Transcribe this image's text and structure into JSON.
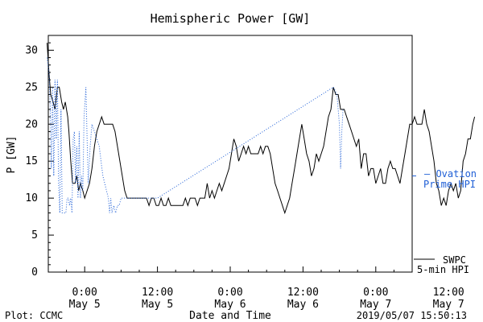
{
  "chart_data": {
    "type": "line",
    "title": "Hemispheric Power [GW]",
    "ylabel": "P [GW]",
    "xlabel": "Date and Time",
    "ylim": [
      0,
      32
    ],
    "yticks": [
      0,
      5,
      10,
      15,
      20,
      25,
      30
    ],
    "xlim_hours": [
      -6,
      54
    ],
    "x_units": "hours from 2019-05-05 00:00 UT",
    "xticks": [
      {
        "hour": 0,
        "time": "0:00",
        "date": "May 5"
      },
      {
        "hour": 12,
        "time": "12:00",
        "date": "May 5"
      },
      {
        "hour": 24,
        "time": "0:00",
        "date": "May 6"
      },
      {
        "hour": 36,
        "time": "12:00",
        "date": "May 6"
      },
      {
        "hour": 48,
        "time": "0:00",
        "date": "May 7"
      },
      {
        "hour": 60,
        "time": "12:00",
        "date": "May 7"
      }
    ],
    "series": [
      {
        "name": "SWPC",
        "style": "solid",
        "color": "#000000",
        "points": [
          [
            -6.2,
            31
          ],
          [
            -5.9,
            27
          ],
          [
            -5.6,
            24
          ],
          [
            -5.2,
            23
          ],
          [
            -4.9,
            22
          ],
          [
            -4.5,
            25
          ],
          [
            -4.2,
            25
          ],
          [
            -3.8,
            23
          ],
          [
            -3.5,
            22
          ],
          [
            -3.2,
            23
          ],
          [
            -2.8,
            21
          ],
          [
            -2.6,
            19
          ],
          [
            -2.3,
            15
          ],
          [
            -2,
            12
          ],
          [
            -1.6,
            12
          ],
          [
            -1.3,
            13
          ],
          [
            -1,
            11
          ],
          [
            -0.7,
            12
          ],
          [
            -0.3,
            11
          ],
          [
            0,
            10
          ],
          [
            0.4,
            11
          ],
          [
            0.8,
            12
          ],
          [
            1.2,
            14
          ],
          [
            1.6,
            17
          ],
          [
            2,
            19
          ],
          [
            2.4,
            20
          ],
          [
            2.8,
            21
          ],
          [
            3.2,
            20
          ],
          [
            3.6,
            20
          ],
          [
            4,
            20
          ],
          [
            4.6,
            20
          ],
          [
            5,
            19
          ],
          [
            5.4,
            17
          ],
          [
            5.8,
            15
          ],
          [
            6.2,
            13
          ],
          [
            6.6,
            11
          ],
          [
            7,
            10
          ],
          [
            7.4,
            10
          ],
          [
            8,
            10
          ],
          [
            8.6,
            10
          ],
          [
            9.2,
            10
          ],
          [
            9.8,
            10
          ],
          [
            10.2,
            10
          ],
          [
            10.6,
            9
          ],
          [
            11,
            10
          ],
          [
            11.4,
            10
          ],
          [
            11.8,
            9
          ],
          [
            12.2,
            9
          ],
          [
            12.6,
            10
          ],
          [
            13,
            9
          ],
          [
            13.4,
            9
          ],
          [
            13.8,
            10
          ],
          [
            14.2,
            9
          ],
          [
            14.6,
            9
          ],
          [
            15.4,
            9
          ],
          [
            16.2,
            9
          ],
          [
            16.6,
            10
          ],
          [
            17,
            9
          ],
          [
            17.4,
            10
          ],
          [
            17.8,
            10
          ],
          [
            18.2,
            10
          ],
          [
            18.6,
            9
          ],
          [
            19,
            10
          ],
          [
            19.4,
            10
          ],
          [
            19.8,
            10
          ],
          [
            20.2,
            12
          ],
          [
            20.6,
            10
          ],
          [
            21,
            11
          ],
          [
            21.4,
            10
          ],
          [
            21.8,
            11
          ],
          [
            22.2,
            12
          ],
          [
            22.6,
            11
          ],
          [
            23,
            12
          ],
          [
            23.4,
            13
          ],
          [
            23.8,
            14
          ],
          [
            24.2,
            16
          ],
          [
            24.6,
            18
          ],
          [
            25,
            17
          ],
          [
            25.4,
            15
          ],
          [
            25.8,
            16
          ],
          [
            26.2,
            17
          ],
          [
            26.6,
            16
          ],
          [
            27,
            17
          ],
          [
            27.4,
            16
          ],
          [
            27.8,
            16
          ],
          [
            28.2,
            16
          ],
          [
            28.6,
            16
          ],
          [
            29,
            17
          ],
          [
            29.4,
            16
          ],
          [
            29.8,
            17
          ],
          [
            30.2,
            17
          ],
          [
            30.6,
            16
          ],
          [
            31,
            14
          ],
          [
            31.4,
            12
          ],
          [
            31.8,
            11
          ],
          [
            32.2,
            10
          ],
          [
            32.6,
            9
          ],
          [
            33,
            8
          ],
          [
            33.4,
            9
          ],
          [
            33.8,
            10
          ],
          [
            34.2,
            12
          ],
          [
            34.6,
            14
          ],
          [
            35,
            16
          ],
          [
            35.4,
            18
          ],
          [
            35.8,
            20
          ],
          [
            36.2,
            18
          ],
          [
            36.6,
            16
          ],
          [
            37,
            15
          ],
          [
            37.4,
            13
          ],
          [
            37.8,
            14
          ],
          [
            38.2,
            16
          ],
          [
            38.6,
            15
          ],
          [
            39,
            16
          ],
          [
            39.4,
            17
          ],
          [
            39.8,
            19
          ],
          [
            40.2,
            21
          ],
          [
            40.6,
            22
          ],
          [
            41,
            25
          ],
          [
            41.4,
            24
          ],
          [
            41.8,
            24
          ],
          [
            42.2,
            22
          ],
          [
            42.8,
            22
          ],
          [
            43.2,
            21
          ],
          [
            43.6,
            20
          ],
          [
            44,
            19
          ],
          [
            44.4,
            18
          ],
          [
            44.8,
            17
          ],
          [
            45.2,
            18
          ],
          [
            45.6,
            14
          ],
          [
            46,
            16
          ],
          [
            46.4,
            16
          ],
          [
            46.8,
            13
          ],
          [
            47.2,
            14
          ],
          [
            47.6,
            14
          ],
          [
            48,
            12
          ],
          [
            48.4,
            13
          ],
          [
            48.8,
            14
          ],
          [
            49.2,
            12
          ],
          [
            49.6,
            12
          ],
          [
            50,
            14
          ],
          [
            50.4,
            15
          ],
          [
            50.8,
            14
          ],
          [
            51.2,
            14
          ],
          [
            51.6,
            13
          ],
          [
            52,
            12
          ],
          [
            52.4,
            14
          ],
          [
            52.8,
            16
          ],
          [
            53.2,
            18
          ],
          [
            53.6,
            20
          ],
          [
            54,
            20
          ],
          [
            54.4,
            21
          ],
          [
            54.8,
            20
          ],
          [
            55.2,
            20
          ],
          [
            55.6,
            20
          ],
          [
            56,
            22
          ],
          [
            56.4,
            20
          ],
          [
            56.8,
            19
          ],
          [
            57.2,
            17
          ],
          [
            57.6,
            15
          ],
          [
            58,
            12
          ],
          [
            58.4,
            11
          ],
          [
            58.8,
            9
          ],
          [
            59.2,
            10
          ],
          [
            59.6,
            9
          ],
          [
            60,
            11
          ],
          [
            60.4,
            12
          ],
          [
            60.8,
            11
          ],
          [
            61.2,
            12
          ],
          [
            61.6,
            10
          ],
          [
            62,
            11
          ],
          [
            62.4,
            15
          ],
          [
            62.8,
            16
          ],
          [
            63.2,
            18
          ],
          [
            63.6,
            18
          ],
          [
            64,
            20
          ],
          [
            64.3,
            21
          ]
        ]
      },
      {
        "name": "5-min HPI",
        "style": "dotted",
        "color": "#1f5fd6",
        "points": [
          [
            -6.2,
            29
          ],
          [
            -5.9,
            27
          ],
          [
            -5.7,
            23
          ],
          [
            -5.5,
            14
          ],
          [
            -5.3,
            25
          ],
          [
            -5.1,
            13
          ],
          [
            -4.9,
            26
          ],
          [
            -4.7,
            18
          ],
          [
            -4.5,
            26
          ],
          [
            -4.3,
            12
          ],
          [
            -4.1,
            8
          ],
          [
            -3.9,
            22
          ],
          [
            -3.7,
            8
          ],
          [
            -3.4,
            8
          ],
          [
            -3.1,
            8
          ],
          [
            -2.9,
            10
          ],
          [
            -2.7,
            10
          ],
          [
            -2.5,
            9
          ],
          [
            -2.3,
            10
          ],
          [
            -2.1,
            8
          ],
          [
            -1.9,
            18
          ],
          [
            -1.7,
            19
          ],
          [
            -1.5,
            12
          ],
          [
            -1.3,
            17
          ],
          [
            -1.1,
            10
          ],
          [
            -0.9,
            19
          ],
          [
            -0.7,
            10
          ],
          [
            -0.5,
            13
          ],
          [
            -0.3,
            11
          ],
          [
            -0.1,
            21
          ],
          [
            0.2,
            25
          ],
          [
            0.4,
            18
          ],
          [
            0.6,
            12
          ],
          [
            0.9,
            17
          ],
          [
            1.2,
            20
          ],
          [
            1.6,
            19
          ],
          [
            2,
            18
          ],
          [
            2.4,
            17
          ],
          [
            2.7,
            15
          ],
          [
            3,
            13
          ],
          [
            3.3,
            12
          ],
          [
            3.6,
            11
          ],
          [
            3.9,
            10
          ],
          [
            4.1,
            8
          ],
          [
            4.3,
            10
          ],
          [
            4.5,
            8
          ],
          [
            4.8,
            9
          ],
          [
            5.1,
            8
          ],
          [
            5.4,
            9
          ],
          [
            5.7,
            9
          ],
          [
            6,
            10
          ],
          [
            6.4,
            10
          ],
          [
            6.9,
            10
          ],
          [
            7.4,
            10
          ],
          [
            12,
            10
          ],
          [
            41,
            25
          ],
          [
            41.6,
            24
          ],
          [
            42,
            20
          ],
          [
            42.2,
            14
          ],
          [
            42.4,
            19
          ],
          [
            42.6,
            22
          ]
        ]
      }
    ],
    "legend": {
      "placement": "right",
      "swpc_label": "SWPC",
      "hpi_label": "5-min HPI"
    },
    "annotation": {
      "line1": "– Ovation",
      "line2": "Prime HPI",
      "value": 13
    },
    "grid": false
  },
  "footer": {
    "left": "Plot: CCMC",
    "right": "2019/05/07 15:50:13"
  },
  "colors": {
    "swpc": "#000000",
    "hpi": "#1f5fd6",
    "annotation": "#1f5fd6"
  }
}
